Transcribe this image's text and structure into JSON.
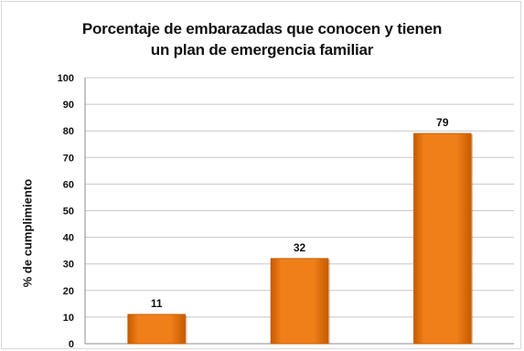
{
  "chart_data": {
    "type": "bar",
    "title": "Porcentaje de embarazadas que conocen y tienen",
    "title_line2": "un plan de emergencia familiar",
    "xlabel": "",
    "ylabel": "% de cumplimiento",
    "categories": [
      "",
      "",
      ""
    ],
    "values": [
      11,
      32,
      79
    ],
    "data_labels": [
      "11",
      "32",
      "79"
    ],
    "ylim": [
      0,
      100
    ],
    "yticks": [
      "0",
      "10",
      "20",
      "30",
      "40",
      "50",
      "60",
      "70",
      "80",
      "90",
      "100"
    ],
    "grid": true,
    "legend": "none",
    "colors": {
      "bar": "#f07f1a",
      "bar_shade": "#c65c00",
      "grid": "#c8c8c8",
      "axis": "#8c8c8c"
    }
  }
}
